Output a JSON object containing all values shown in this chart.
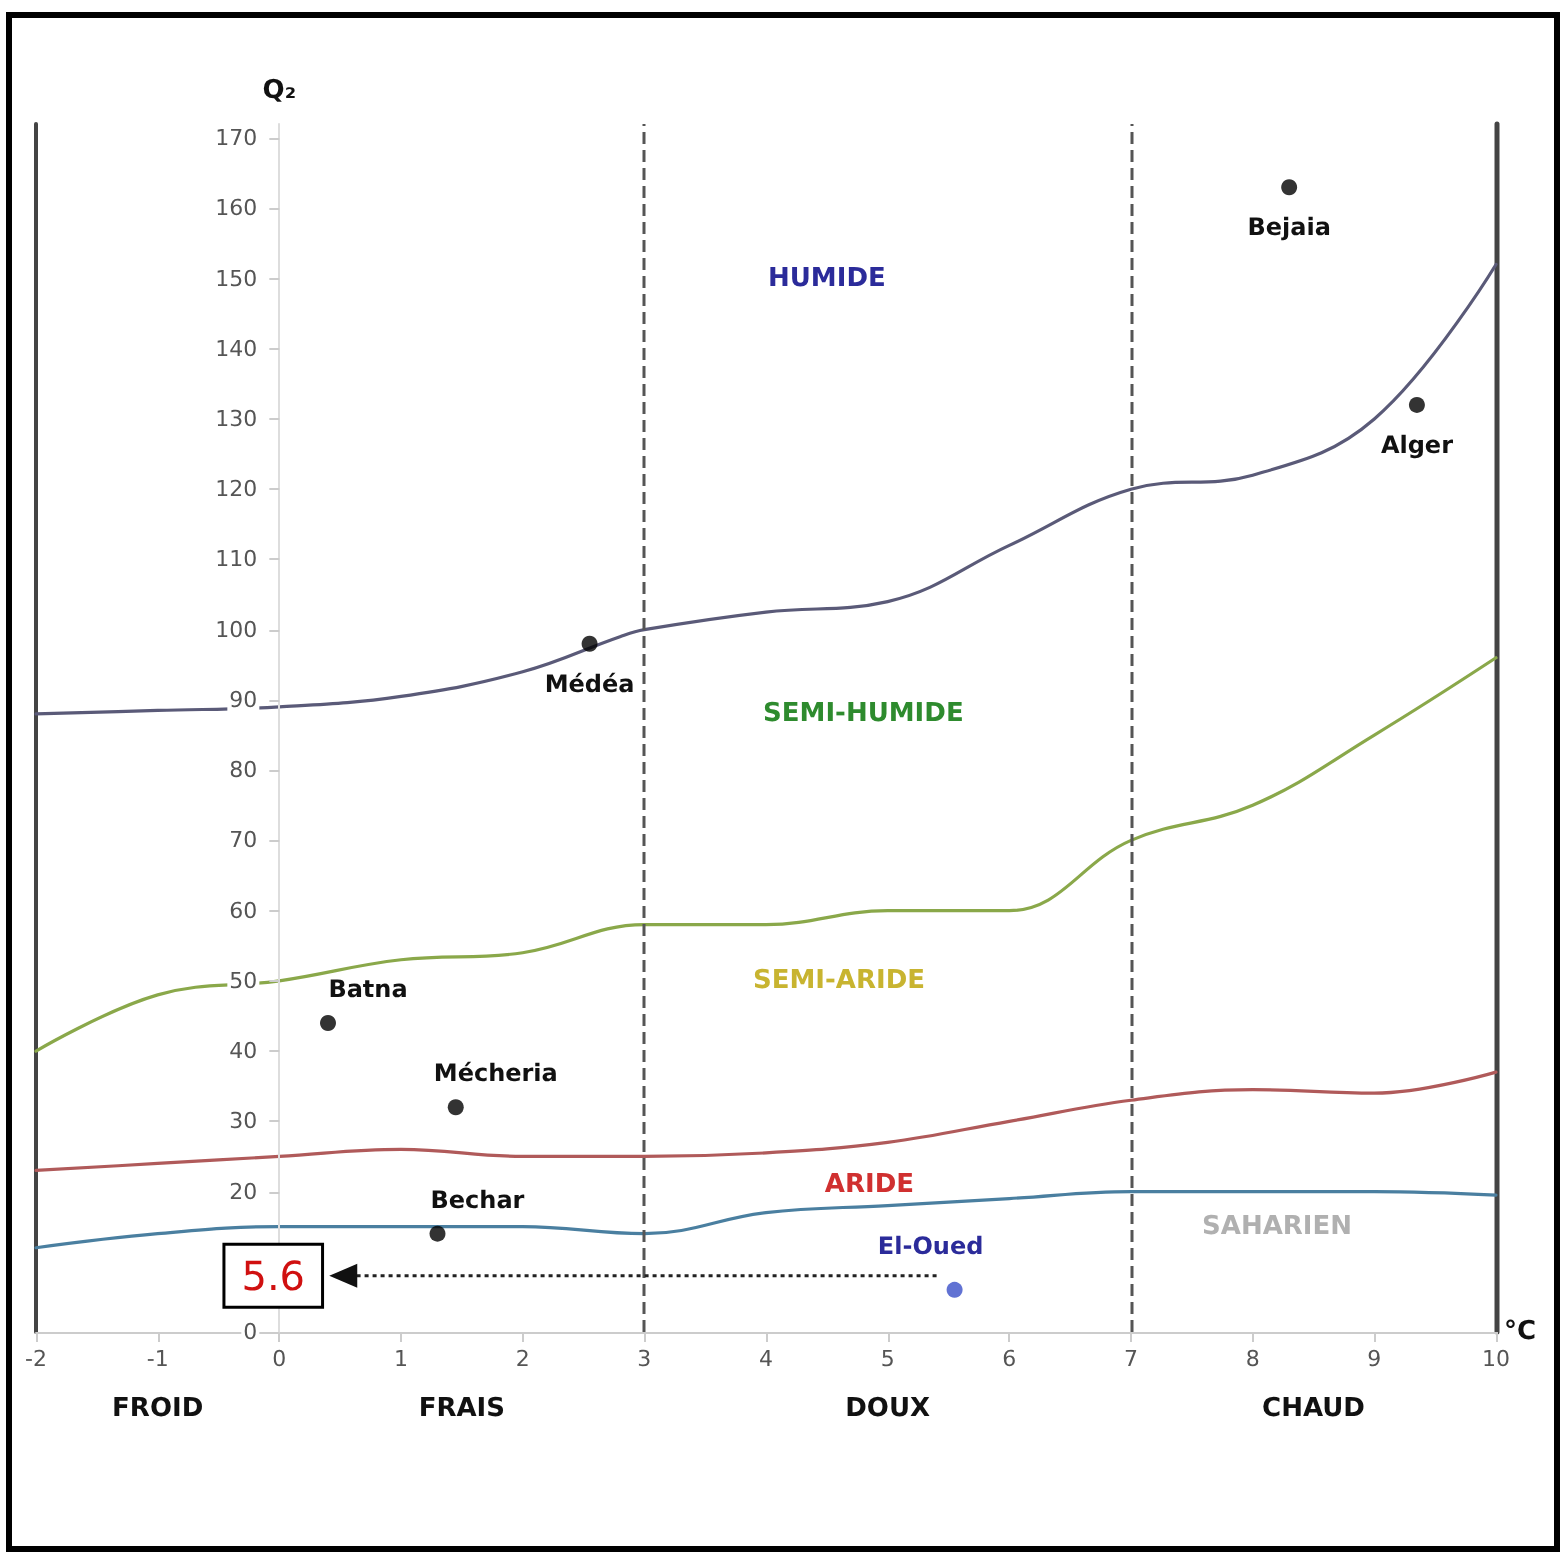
{
  "chart_data": {
    "type": "line",
    "xlabel": "°C",
    "ylabel": "Q₂",
    "xlim": [
      -2,
      10
    ],
    "xticks": [
      -2,
      -1,
      0,
      1,
      2,
      3,
      4,
      5,
      6,
      7,
      8,
      9,
      10
    ],
    "ylim": [
      0,
      172
    ],
    "yticks": [
      0,
      {
        "value": 10,
        "label": null
      },
      20,
      30,
      40,
      50,
      60,
      70,
      80,
      90,
      100,
      110,
      120,
      130,
      140,
      150,
      160,
      170
    ],
    "grid": false,
    "marker": "none",
    "line_style": "solid",
    "series": [
      {
        "color": "#5a5a78",
        "x": [
          -2,
          -1,
          0,
          1,
          2,
          2.8,
          3,
          4,
          5,
          6,
          7,
          8,
          9,
          10
        ],
        "values": [
          88,
          88.5,
          89,
          90.5,
          94,
          99,
          100,
          102.5,
          104,
          112,
          120,
          122,
          130,
          152
        ]
      },
      {
        "color": "#8aa84a",
        "x": [
          -2,
          -1,
          0,
          1,
          2,
          3,
          4,
          5,
          6,
          7,
          8,
          9,
          10
        ],
        "values": [
          40,
          48,
          50,
          53,
          54,
          58,
          58,
          60,
          60,
          70,
          75,
          85,
          96
        ]
      },
      {
        "color": "#b05a5a",
        "x": [
          -2,
          -1,
          0,
          1,
          2,
          3,
          4,
          5,
          6,
          7,
          8,
          9,
          10
        ],
        "values": [
          23,
          24,
          25,
          26,
          25,
          25,
          25.5,
          27,
          30,
          33,
          34.5,
          34,
          37
        ]
      },
      {
        "color": "#4a7fa0",
        "x": [
          -2,
          -1,
          0,
          1,
          2,
          3,
          4,
          5,
          6,
          7,
          8,
          9,
          10
        ],
        "values": [
          12,
          14,
          15,
          15,
          15,
          14,
          17,
          18,
          19,
          20,
          20,
          20,
          19.5
        ]
      },
      {
        "type": "scatter",
        "color": "#000000",
        "marker": "circle",
        "x": [
          8.3,
          9.35,
          2.55,
          0.4,
          1.45,
          1.3,
          5.55
        ],
        "values": [
          163,
          132,
          98,
          44,
          32,
          14,
          6
        ],
        "colors": [
          "#000000",
          "#000000",
          "#000000",
          "#000000",
          "#000000",
          "#000000",
          "#3a4fc8"
        ]
      }
    ],
    "ref_lines": [
      {
        "axis": "x",
        "value": 3,
        "line_style": "dashed",
        "color": "#555555"
      },
      {
        "axis": "x",
        "value": 7,
        "line_style": "dashed",
        "color": "#555555"
      }
    ],
    "annotations": [
      "HUMIDE",
      "SEMI-HUMIDE",
      "SEMI-ARIDE",
      "ARIDE",
      "SAHARIEN",
      "FROID",
      "FRAIS",
      "DOUX",
      "CHAUD",
      "5.6",
      {
        "text": "Bejaia",
        "x": 8.3,
        "y": 163
      },
      {
        "text": "Alger",
        "x": 9.35,
        "y": 132
      },
      {
        "text": "Médéa",
        "x": 2.55,
        "y": 98
      },
      {
        "text": "Batna",
        "x": 0.4,
        "y": 44
      },
      {
        "text": "Mécheria",
        "x": 1.45,
        "y": 32
      },
      {
        "text": "Bechar",
        "x": 1.3,
        "y": 14
      },
      {
        "text": "El-Oued",
        "x": 5.55,
        "y": 6
      }
    ]
  }
}
